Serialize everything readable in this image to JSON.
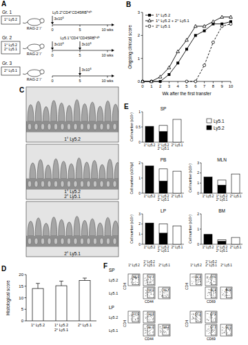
{
  "schematic": {
    "panel": "A",
    "recipient": "RAG-2⁻/⁻",
    "timeline_ticks": [
      {
        "value": 0,
        "label": "0"
      },
      {
        "value": 5,
        "label": "5"
      },
      {
        "value": 10,
        "label": "10 wks"
      }
    ],
    "groups": [
      {
        "name": "Gr. 1",
        "box": "1° Ly5.2",
        "transfers": [
          {
            "week": 0,
            "dose": "3x10⁵",
            "cells": "Ly5.2⁺CD4⁺CD45RBʰⁱᵍʰ"
          }
        ]
      },
      {
        "name": "Gr. 2",
        "box": "1° Ly5.2\n2° Ly5.1",
        "transfers": [
          {
            "week": 0,
            "dose": "3x10⁵"
          },
          {
            "week": 5,
            "dose": "3x10⁵",
            "cells": "Ly5.1⁺CD4⁺CD45RBʰⁱᵍʰ"
          }
        ]
      },
      {
        "name": "Gr. 3",
        "box": "2° Ly5.1",
        "transfers": [
          {
            "week": 5,
            "dose": "3x10⁵"
          }
        ]
      }
    ]
  },
  "chart_data": [
    {
      "panel": "B",
      "type": "line",
      "x": [
        0,
        1,
        2,
        3,
        4,
        5,
        6,
        7,
        8,
        9,
        10
      ],
      "xlim": [
        0,
        10
      ],
      "xticks": [
        0,
        1,
        2,
        3,
        4,
        5,
        6,
        7,
        8,
        9,
        10
      ],
      "ylim": [
        0,
        3
      ],
      "yticks": [
        0,
        1,
        2,
        3
      ],
      "x_label": "Wk after the first transfer",
      "y_label": "Ongoing clinical score",
      "legend": "upper left",
      "grid": false,
      "series": [
        {
          "name": "1° Ly5.2",
          "color": "#000000",
          "marker": "square",
          "line_style": "solid",
          "values": [
            0,
            0,
            0,
            0.3,
            0.8,
            1.4,
            2.0,
            2.2,
            2.5,
            2.5,
            2.6
          ]
        },
        {
          "name": "1° Ly5.2 + 2° Ly5.1",
          "color": "#000000",
          "marker": "triangle",
          "line_style": "solid",
          "values": [
            0,
            0,
            0.2,
            0.6,
            1.3,
            1.8,
            2.4,
            2.4,
            2.6,
            2.8,
            2.8
          ]
        },
        {
          "name": "2° Ly5.1",
          "color": "#000000",
          "marker": "circle",
          "line_style": "dashed",
          "values": [
            null,
            null,
            null,
            null,
            null,
            0,
            0,
            0.7,
            1.7,
            2.4,
            2.5
          ]
        }
      ]
    },
    {
      "panel": "D",
      "type": "bar",
      "categories": [
        "1° Ly5.2",
        "1° Ly5.2\n2° Ly5.1",
        "2° Ly5.1"
      ],
      "values": [
        14,
        15.2,
        17.5
      ],
      "errors": [
        2.2,
        2,
        1
      ],
      "color": "#ffffff",
      "ylim": [
        0,
        20
      ],
      "yticks": [
        0,
        5,
        10,
        15,
        20
      ],
      "y_label": "Histological score",
      "grid": false
    },
    {
      "panel": "E",
      "type": "bar",
      "stacked": true,
      "legend": "upper right",
      "categories": [
        "1° Ly5.2",
        "1° Ly5.2\n2° Ly5.1",
        "2° Ly5.1"
      ],
      "series": [
        {
          "name": "Ly5.2",
          "color": "#000000"
        },
        {
          "name": "Ly5.1",
          "color": "#ffffff"
        }
      ],
      "subplots": [
        {
          "title": "SP",
          "y_label": "Cell number (x10⁶)",
          "ylim": [
            0,
            1
          ],
          "yticks": [
            0,
            0.5,
            1
          ],
          "values": [
            [
              0.52,
              0.35,
              null
            ],
            [
              null,
              0.2,
              0.75
            ]
          ]
        },
        {
          "title": "PB",
          "y_label": "Cell number (x10³/µl)",
          "ylim": [
            0,
            2
          ],
          "yticks": [
            0,
            1,
            2
          ],
          "values": [
            [
              1.8,
              0.8,
              null
            ],
            [
              null,
              0.8,
              1.45
            ]
          ]
        },
        {
          "title": "MLN",
          "y_label": "Cell number (x10⁶)",
          "ylim": [
            0,
            3
          ],
          "yticks": [
            0,
            1,
            2,
            3
          ],
          "values": [
            [
              1.6,
              0.8,
              null
            ],
            [
              null,
              0.5,
              1.9
            ]
          ]
        },
        {
          "title": "LP",
          "y_label": "Cell number (x10⁵)",
          "ylim": [
            0,
            3
          ],
          "yticks": [
            0,
            1,
            2,
            3
          ],
          "values": [
            [
              2.1,
              1.1,
              null
            ],
            [
              null,
              0.9,
              1.8
            ]
          ]
        },
        {
          "title": "BM",
          "y_label": "Cell number (x10⁵)",
          "ylim": [
            0,
            2
          ],
          "yticks": [
            0,
            1,
            2
          ],
          "values": [
            [
              0.65,
              0.2,
              null
            ],
            [
              null,
              0.1,
              0.45
            ]
          ]
        }
      ]
    }
  ],
  "histology": {
    "panel": "C",
    "images": [
      "1° Ly5.2",
      "1° Ly5.2\n2° Ly5.1",
      "2° Ly5.1"
    ]
  },
  "flow": {
    "panel": "F",
    "columns": [
      "1° Ly5.2",
      "1° Ly5.2\n2° Ly5.1",
      "2° Ly5.1"
    ],
    "rows": [
      "Ly5.2",
      "Ly5.1"
    ],
    "tissues": [
      {
        "name": "SP",
        "panels": [
          {
            "x_label": "CD44",
            "y_label": "CD4",
            "values": [
              [
                96.1,
                97.2,
                null
              ],
              [
                null,
                98.6,
                96.7
              ]
            ]
          },
          {
            "x_label": "CD69",
            "y_label": "CD4",
            "values": [
              [
                24.4,
                27.5,
                null
              ],
              [
                null,
                36.3,
                36.9
              ]
            ]
          }
        ]
      },
      {
        "name": "LP",
        "panels": [
          {
            "x_label": "CD44",
            "y_label": "CD4",
            "values": [
              [
                97.5,
                96.1,
                null
              ],
              [
                null,
                96.2,
                98.4
              ]
            ]
          },
          {
            "x_label": "CD69",
            "y_label": "CD4",
            "values": [
              [
                57.1,
                57.5,
                null
              ],
              [
                null,
                57.7,
                56.5
              ]
            ]
          }
        ]
      }
    ]
  }
}
